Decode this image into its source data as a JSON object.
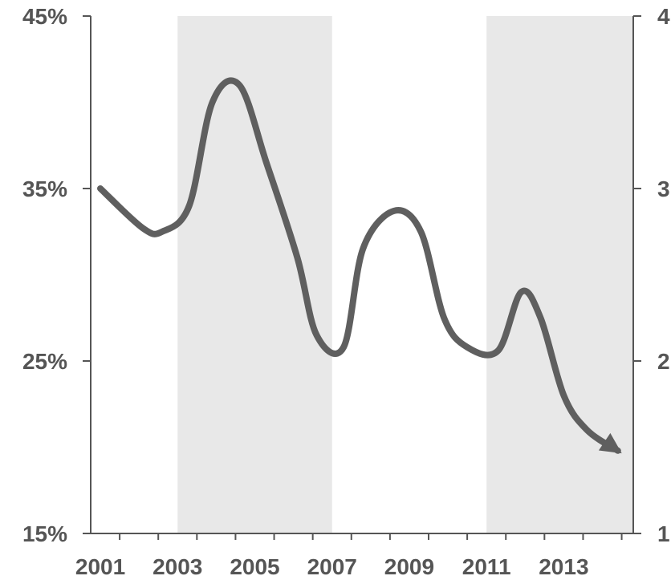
{
  "chart_data": {
    "type": "line",
    "title": "",
    "xlabel": "",
    "ylabel": "",
    "xlim": [
      2000.75,
      2014.8
    ],
    "ylim": [
      15,
      45
    ],
    "y_ticks": [
      15,
      25,
      35,
      45
    ],
    "y_tick_labels": [
      "15%",
      "25%",
      "35%",
      "45%"
    ],
    "x_ticks": [
      2001,
      2003,
      2005,
      2007,
      2009,
      2011,
      2013
    ],
    "x_tick_labels": [
      "2001",
      "2003",
      "2005",
      "2007",
      "2009",
      "2011",
      "2013"
    ],
    "y2_tick_labels": [
      "1",
      "2",
      "3",
      "4"
    ],
    "grid": false,
    "shaded_periods": [
      [
        2003,
        2007
      ],
      [
        2011,
        2014.8
      ]
    ],
    "series": [
      {
        "color": "#5f5f5f",
        "x": [
          2001.0,
          2002.1,
          2002.6,
          2003.3,
          2003.9,
          2004.6,
          2005.3,
          2006.1,
          2006.6,
          2007.3,
          2007.8,
          2008.6,
          2009.3,
          2009.9,
          2010.5,
          2011.3,
          2011.9,
          2012.4,
          2013.0,
          2013.6,
          2014.4
        ],
        "values": [
          35.0,
          32.7,
          32.5,
          34.0,
          40.0,
          41.0,
          36.5,
          31.0,
          26.5,
          25.8,
          31.5,
          33.7,
          32.5,
          27.5,
          25.8,
          25.6,
          29.0,
          27.5,
          23.0,
          21.0,
          19.8
        ]
      }
    ],
    "end_marker": "arrow",
    "colors": {
      "shade": "#e8e8e8",
      "axis": "#555555",
      "line": "#5f5f5f"
    }
  }
}
